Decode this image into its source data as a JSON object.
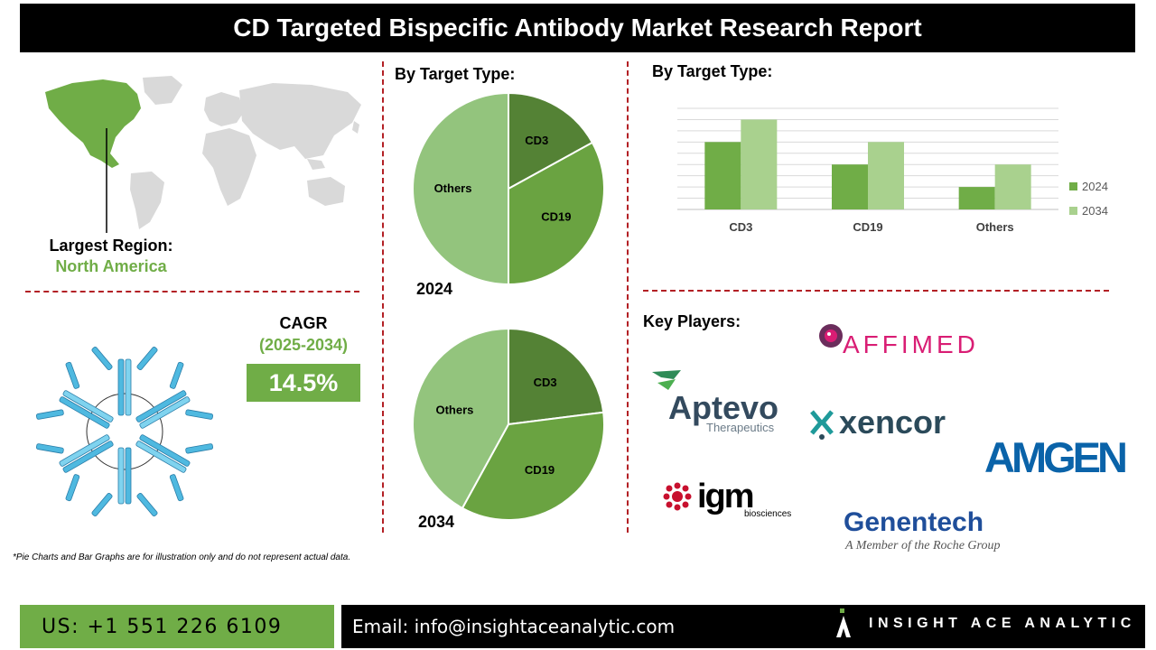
{
  "title": "CD Targeted Bispecific Antibody Market Research Report",
  "region": {
    "label": "Largest Region:",
    "value": "North America"
  },
  "cagr": {
    "label": "CAGR",
    "period": "(2025-2034)",
    "value": "14.5%"
  },
  "pie_section_title": "By Target Type:",
  "bar_section_title": "By Target Type:",
  "players_label": "Key Players:",
  "key_players": [
    "AFFIMED",
    "Aptevo",
    "Therapeutics",
    "xencor",
    "AMGEN",
    "igm",
    "biosciences",
    "Genentech",
    "A Member of the Roche Group"
  ],
  "disclaimer": "*Pie Charts and Bar Graphs are for illustration only and do not represent actual data.",
  "footer": {
    "phone": "US: +1 551 226 6109",
    "email": "Email: info@insightaceanalytic.com",
    "brand": "INSIGHT ACE ANALYTIC"
  },
  "colors": {
    "dark_green": "#548235",
    "mid_green": "#6aa341",
    "light_green": "#93c47d",
    "bar_light": "#a9d18e",
    "accent": "#70ad47",
    "dash": "#b32025"
  },
  "chart_data": [
    {
      "type": "pie",
      "title": "2024",
      "categories": [
        "CD3",
        "CD19",
        "Others"
      ],
      "values": [
        17,
        33,
        50
      ]
    },
    {
      "type": "pie",
      "title": "2034",
      "categories": [
        "CD3",
        "CD19",
        "Others"
      ],
      "values": [
        23,
        35,
        42
      ]
    },
    {
      "type": "bar",
      "categories": [
        "CD3",
        "CD19",
        "Others"
      ],
      "series": [
        {
          "name": "2024",
          "values": [
            3,
            2,
            1
          ]
        },
        {
          "name": "2034",
          "values": [
            4,
            3,
            2
          ]
        }
      ],
      "ylim": [
        0,
        4.5
      ],
      "legend": "right"
    }
  ]
}
